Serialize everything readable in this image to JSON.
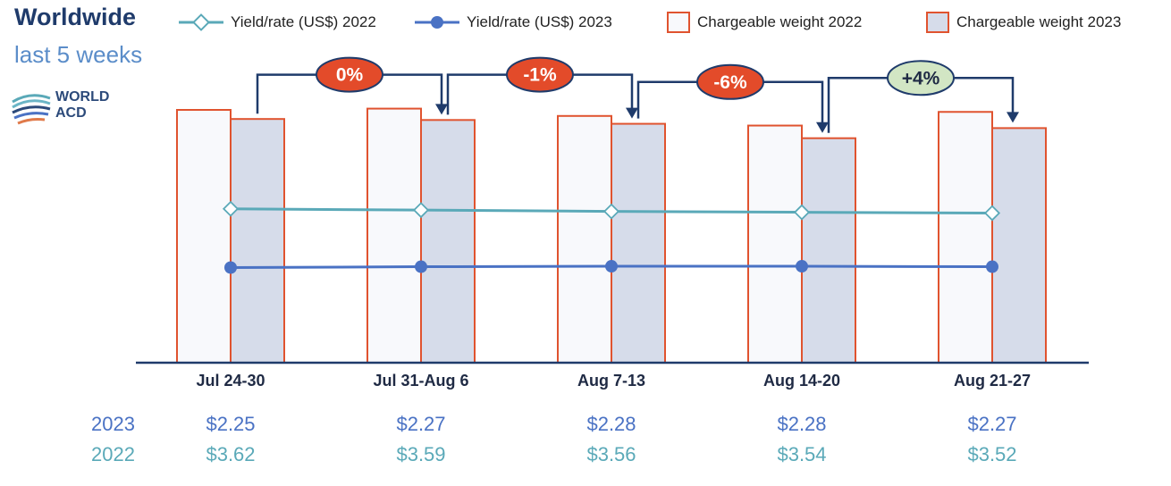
{
  "header": {
    "title": "Worldwide",
    "subtitle": "last 5 weeks"
  },
  "logo": {
    "line1": "WORLD",
    "line2": "ACD"
  },
  "legend": [
    {
      "label": "Yield/rate (US$) 2022",
      "kind": "line-diamond",
      "color": "#5aa9b8"
    },
    {
      "label": "Yield/rate (US$) 2023",
      "kind": "line-circle",
      "color": "#4a72c4"
    },
    {
      "label": "Chargeable weight 2022",
      "kind": "bar",
      "color": "#f8f9fc",
      "border": "#e0532f"
    },
    {
      "label": "Chargeable weight 2023",
      "kind": "bar",
      "color": "#d6dcea",
      "border": "#e0532f"
    }
  ],
  "chart_data": {
    "type": "bar",
    "categories": [
      "Jul 24-30",
      "Jul 31-Aug 6",
      "Aug 7-13",
      "Aug 14-20",
      "Aug 21-27"
    ],
    "bar_series": [
      {
        "name": "Chargeable weight 2022",
        "values": [
          100,
          100.5,
          97.6,
          93.8,
          99.2
        ]
      },
      {
        "name": "Chargeable weight 2023",
        "values": [
          96.4,
          96.0,
          94.5,
          88.8,
          92.8
        ]
      }
    ],
    "line_series": [
      {
        "name": "Yield/rate (US$) 2022",
        "values": [
          3.62,
          3.59,
          3.56,
          3.54,
          3.52
        ]
      },
      {
        "name": "Yield/rate (US$) 2023",
        "values": [
          2.25,
          2.27,
          2.28,
          2.28,
          2.27
        ]
      }
    ],
    "changes": [
      {
        "label": "0%",
        "color": "#e34b2a"
      },
      {
        "label": "-1%",
        "color": "#e34b2a"
      },
      {
        "label": "-6%",
        "color": "#e34b2a"
      },
      {
        "label": "+4%",
        "color": "#d2e6c4"
      }
    ],
    "value_rows": [
      {
        "year": "2023",
        "color": "#4a72c4",
        "values": [
          "$2.25",
          "$2.27",
          "$2.28",
          "$2.28",
          "$2.27"
        ]
      },
      {
        "year": "2022",
        "color": "#5aa9b8",
        "values": [
          "$3.62",
          "$3.59",
          "$3.56",
          "$3.54",
          "$3.52"
        ]
      }
    ],
    "colors": {
      "axis": "#1f3b6b",
      "bar_border": "#e0532f",
      "bar2022": "#f8f9fc",
      "bar2023": "#d6dcea",
      "arrow": "#1f3b6b"
    }
  }
}
